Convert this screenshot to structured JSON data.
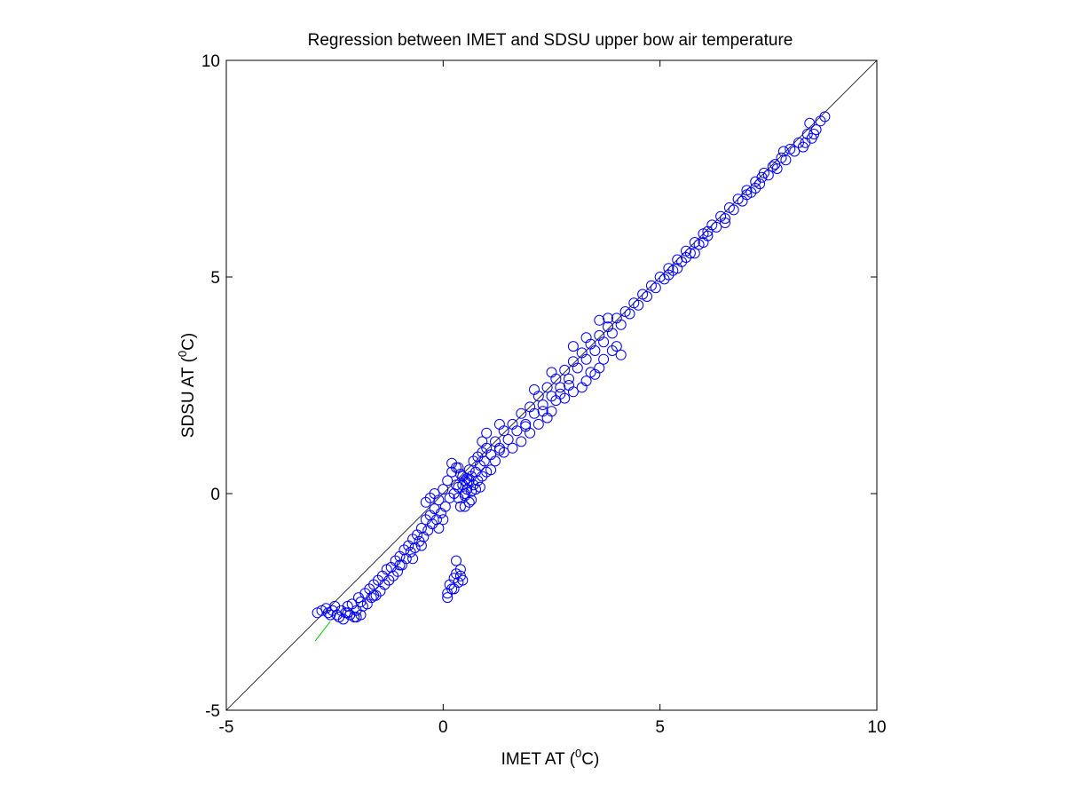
{
  "chart_data": {
    "type": "scatter",
    "title": "Regression between IMET and SDSU upper bow air temperature",
    "xlabel": {
      "prefix": "IMET AT (",
      "sup": "0",
      "suffix": "C)"
    },
    "ylabel": {
      "prefix": "SDSU AT (",
      "sup": "0",
      "suffix": "C)"
    },
    "xlim": [
      -5,
      10
    ],
    "ylim": [
      -5,
      10
    ],
    "xticks": [
      -5,
      0,
      5,
      10
    ],
    "yticks": [
      -5,
      0,
      5,
      10
    ],
    "xticklabels": [
      "-5",
      "0",
      "5",
      "10"
    ],
    "yticklabels": [
      "-5",
      "0",
      "5",
      "10"
    ],
    "grid": false,
    "legend": "none",
    "colors": {
      "points": "#0000ff",
      "reference_line": "#000000",
      "fit_line": "#00cc00"
    },
    "reference_line": {
      "x": [
        -5,
        10
      ],
      "y": [
        -5,
        10
      ]
    },
    "fit_line": {
      "x": [
        -2.95,
        -2.6
      ],
      "y": [
        -3.4,
        -2.95
      ]
    },
    "series": [
      {
        "marker": "open-circle",
        "points": [
          [
            -2.9,
            -2.75
          ],
          [
            -2.8,
            -2.7
          ],
          [
            -2.7,
            -2.65
          ],
          [
            -2.65,
            -2.75
          ],
          [
            -2.6,
            -2.8
          ],
          [
            -2.55,
            -2.7
          ],
          [
            -2.5,
            -2.6
          ],
          [
            -2.45,
            -2.8
          ],
          [
            -2.4,
            -2.85
          ],
          [
            -2.35,
            -2.7
          ],
          [
            -2.3,
            -2.9
          ],
          [
            -2.25,
            -2.75
          ],
          [
            -2.2,
            -2.6
          ],
          [
            -2.15,
            -2.8
          ],
          [
            -2.1,
            -2.55
          ],
          [
            -2.05,
            -2.85
          ],
          [
            -2.0,
            -2.7
          ],
          [
            -1.95,
            -2.4
          ],
          [
            -1.9,
            -2.8
          ],
          [
            -1.85,
            -2.6
          ],
          [
            -1.8,
            -2.3
          ],
          [
            -1.75,
            -2.55
          ],
          [
            -1.7,
            -2.2
          ],
          [
            -1.65,
            -2.4
          ],
          [
            -1.6,
            -2.1
          ],
          [
            -1.55,
            -2.35
          ],
          [
            -1.5,
            -2.0
          ],
          [
            -1.45,
            -2.25
          ],
          [
            -1.4,
            -1.9
          ],
          [
            -1.35,
            -2.1
          ],
          [
            -1.3,
            -1.75
          ],
          [
            -1.25,
            -2.0
          ],
          [
            -1.2,
            -1.7
          ],
          [
            -1.15,
            -1.9
          ],
          [
            -1.1,
            -1.55
          ],
          [
            -1.05,
            -1.8
          ],
          [
            -1.0,
            -1.45
          ],
          [
            -0.95,
            -1.65
          ],
          [
            -0.9,
            -1.3
          ],
          [
            -0.85,
            -1.5
          ],
          [
            -0.8,
            -1.2
          ],
          [
            -0.75,
            -1.35
          ],
          [
            -0.7,
            -1.05
          ],
          [
            -0.65,
            -1.25
          ],
          [
            -0.6,
            -0.95
          ],
          [
            -0.55,
            -1.1
          ],
          [
            -0.5,
            -0.8
          ],
          [
            -0.45,
            -1.0
          ],
          [
            -0.4,
            -0.6
          ],
          [
            -0.35,
            -0.85
          ],
          [
            -0.3,
            -0.5
          ],
          [
            -0.25,
            -0.7
          ],
          [
            -0.2,
            -0.35
          ],
          [
            -0.15,
            -0.6
          ],
          [
            -0.1,
            -0.15
          ],
          [
            -0.05,
            -0.45
          ],
          [
            0.0,
            0.1
          ],
          [
            0.05,
            -0.3
          ],
          [
            0.1,
            0.3
          ],
          [
            0.15,
            -0.1
          ],
          [
            0.2,
            0.5
          ],
          [
            0.25,
            0.0
          ],
          [
            0.3,
            0.6
          ],
          [
            0.35,
            0.15
          ],
          [
            0.4,
            0.45
          ],
          [
            0.45,
            0.2
          ],
          [
            0.5,
            0.3
          ],
          [
            0.55,
            0.35
          ],
          [
            0.6,
            0.55
          ],
          [
            0.65,
            0.4
          ],
          [
            0.7,
            0.75
          ],
          [
            0.75,
            0.5
          ],
          [
            0.8,
            0.85
          ],
          [
            0.85,
            0.65
          ],
          [
            0.9,
            0.95
          ],
          [
            0.95,
            0.75
          ],
          [
            1.0,
            1.05
          ],
          [
            1.1,
            0.9
          ],
          [
            1.2,
            1.2
          ],
          [
            1.3,
            1.05
          ],
          [
            1.4,
            1.45
          ],
          [
            1.5,
            1.25
          ],
          [
            1.6,
            1.6
          ],
          [
            1.7,
            1.45
          ],
          [
            1.8,
            1.85
          ],
          [
            1.9,
            1.6
          ],
          [
            2.0,
            2.0
          ],
          [
            2.1,
            1.85
          ],
          [
            2.2,
            2.25
          ],
          [
            2.3,
            2.05
          ],
          [
            2.4,
            2.45
          ],
          [
            2.5,
            2.25
          ],
          [
            2.6,
            2.65
          ],
          [
            2.7,
            2.45
          ],
          [
            2.8,
            2.85
          ],
          [
            2.9,
            2.65
          ],
          [
            3.0,
            3.05
          ],
          [
            3.1,
            2.9
          ],
          [
            3.2,
            3.25
          ],
          [
            3.3,
            3.1
          ],
          [
            3.4,
            3.45
          ],
          [
            3.5,
            3.3
          ],
          [
            3.6,
            3.65
          ],
          [
            3.7,
            3.5
          ],
          [
            3.8,
            3.85
          ],
          [
            3.9,
            3.7
          ],
          [
            4.0,
            4.05
          ],
          [
            4.1,
            3.9
          ],
          [
            4.2,
            4.2
          ],
          [
            4.3,
            4.15
          ],
          [
            4.4,
            4.4
          ],
          [
            4.5,
            4.35
          ],
          [
            4.6,
            4.6
          ],
          [
            4.7,
            4.55
          ],
          [
            4.8,
            4.8
          ],
          [
            4.9,
            4.75
          ],
          [
            5.0,
            5.0
          ],
          [
            5.1,
            4.95
          ],
          [
            5.2,
            5.2
          ],
          [
            5.3,
            5.15
          ],
          [
            5.4,
            5.4
          ],
          [
            5.5,
            5.35
          ],
          [
            5.6,
            5.6
          ],
          [
            5.7,
            5.55
          ],
          [
            5.8,
            5.8
          ],
          [
            5.9,
            5.75
          ],
          [
            6.0,
            6.0
          ],
          [
            6.1,
            5.95
          ],
          [
            6.2,
            6.2
          ],
          [
            6.3,
            6.15
          ],
          [
            6.4,
            6.4
          ],
          [
            6.5,
            6.35
          ],
          [
            6.6,
            6.6
          ],
          [
            6.7,
            6.55
          ],
          [
            6.8,
            6.8
          ],
          [
            6.9,
            6.75
          ],
          [
            7.0,
            7.0
          ],
          [
            7.1,
            6.95
          ],
          [
            7.2,
            7.2
          ],
          [
            7.3,
            7.15
          ],
          [
            7.4,
            7.4
          ],
          [
            7.5,
            7.35
          ],
          [
            7.6,
            7.55
          ],
          [
            7.7,
            7.5
          ],
          [
            7.8,
            7.75
          ],
          [
            7.9,
            7.7
          ],
          [
            8.0,
            7.95
          ],
          [
            8.1,
            7.9
          ],
          [
            8.2,
            8.1
          ],
          [
            8.3,
            8.0
          ],
          [
            8.4,
            8.3
          ],
          [
            8.5,
            8.2
          ],
          [
            8.6,
            8.4
          ],
          [
            8.7,
            8.6
          ],
          [
            8.8,
            8.7
          ],
          [
            8.45,
            8.55
          ],
          [
            8.35,
            8.1
          ],
          [
            8.55,
            8.3
          ],
          [
            7.85,
            7.9
          ],
          [
            7.65,
            7.6
          ],
          [
            0.3,
            0.2
          ],
          [
            0.35,
            -0.1
          ],
          [
            0.5,
            0.0
          ],
          [
            0.55,
            0.25
          ],
          [
            0.6,
            0.3
          ],
          [
            0.7,
            0.2
          ],
          [
            0.8,
            0.3
          ],
          [
            0.9,
            0.4
          ],
          [
            1.0,
            0.5
          ],
          [
            1.1,
            0.55
          ],
          [
            1.2,
            0.75
          ],
          [
            1.4,
            0.95
          ],
          [
            1.6,
            1.05
          ],
          [
            1.8,
            1.2
          ],
          [
            2.0,
            1.4
          ],
          [
            2.2,
            1.6
          ],
          [
            2.4,
            1.75
          ],
          [
            2.5,
            1.9
          ],
          [
            2.6,
            2.15
          ],
          [
            2.8,
            2.2
          ],
          [
            3.0,
            2.35
          ],
          [
            3.2,
            2.45
          ],
          [
            3.3,
            2.6
          ],
          [
            3.5,
            2.75
          ],
          [
            3.6,
            2.9
          ],
          [
            3.7,
            3.1
          ],
          [
            3.9,
            3.3
          ],
          [
            4.0,
            3.4
          ],
          [
            4.1,
            3.2
          ],
          [
            3.4,
            2.8
          ],
          [
            2.9,
            2.5
          ],
          [
            2.7,
            2.3
          ],
          [
            2.3,
            1.9
          ],
          [
            1.9,
            1.55
          ],
          [
            1.3,
            1.0
          ],
          [
            0.65,
            -0.15
          ],
          [
            0.4,
            -0.3
          ],
          [
            -0.5,
            -1.2
          ],
          [
            -0.7,
            -1.5
          ],
          [
            -1.0,
            -1.65
          ],
          [
            -1.6,
            -2.35
          ],
          [
            -1.9,
            -2.5
          ],
          [
            -2.0,
            -2.85
          ],
          [
            -2.2,
            -2.75
          ],
          [
            2.1,
            2.4
          ],
          [
            2.5,
            2.8
          ],
          [
            3.0,
            3.4
          ],
          [
            3.3,
            3.6
          ],
          [
            3.6,
            4.0
          ],
          [
            3.8,
            4.05
          ],
          [
            1.0,
            1.4
          ],
          [
            1.3,
            1.6
          ],
          [
            0.9,
            1.2
          ],
          [
            0.2,
            0.7
          ],
          [
            0.35,
            0.6
          ],
          [
            -0.2,
            0.0
          ],
          [
            -0.4,
            -0.2
          ],
          [
            -0.3,
            -0.1
          ],
          [
            0.0,
            -0.6
          ],
          [
            -0.1,
            -0.8
          ],
          [
            0.1,
            -2.3
          ],
          [
            0.15,
            -2.1
          ],
          [
            0.2,
            -2.2
          ],
          [
            0.25,
            -1.95
          ],
          [
            0.3,
            -1.85
          ],
          [
            0.35,
            -2.05
          ],
          [
            0.4,
            -1.75
          ],
          [
            0.4,
            -1.9
          ],
          [
            0.45,
            -2.0
          ],
          [
            0.3,
            -1.55
          ],
          [
            0.1,
            -2.4
          ],
          [
            0.25,
            -2.2
          ],
          [
            0.5,
            -0.05
          ],
          [
            0.5,
            -0.3
          ],
          [
            0.55,
            0.1
          ],
          [
            0.6,
            -0.2
          ],
          [
            0.65,
            0.05
          ],
          [
            0.75,
            0.1
          ],
          [
            0.85,
            0.15
          ],
          [
            0.45,
            0.4
          ],
          [
            5.2,
            5.05
          ],
          [
            5.4,
            5.2
          ],
          [
            5.6,
            5.45
          ],
          [
            6.0,
            5.8
          ],
          [
            6.1,
            6.05
          ],
          [
            6.5,
            6.25
          ],
          [
            7.0,
            6.9
          ],
          [
            7.2,
            7.05
          ],
          [
            7.35,
            7.3
          ],
          [
            5.8,
            5.55
          ]
        ]
      }
    ]
  }
}
